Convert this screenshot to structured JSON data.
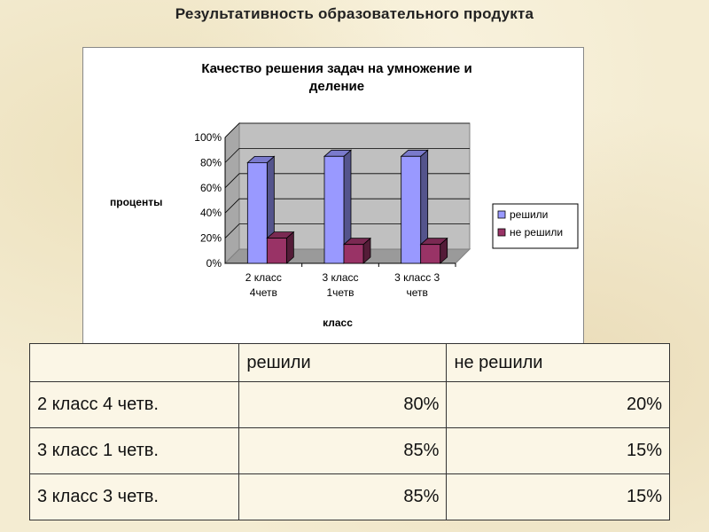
{
  "page_title": "Результативность образовательного продукта",
  "chart_data": {
    "type": "bar",
    "title": "Качество решения задач на умножение и деление",
    "title_lines": [
      "Качество решения задач на умножение и",
      "деление"
    ],
    "categories": [
      [
        "2 класс",
        "4четв"
      ],
      [
        "3 класс",
        "1четв"
      ],
      [
        "3 класс 3",
        "четв"
      ]
    ],
    "series": [
      {
        "name": "решили",
        "values": [
          80,
          85,
          85
        ],
        "color": "#9999ff"
      },
      {
        "name": "не решили",
        "values": [
          20,
          15,
          15
        ],
        "color": "#993366"
      }
    ],
    "ylim": [
      0,
      100
    ],
    "yticks": [
      "0%",
      "20%",
      "40%",
      "60%",
      "80%",
      "100%"
    ],
    "xlabel": "класс",
    "ylabel": "проценты",
    "legend_position": "right",
    "grid": true
  },
  "table": {
    "headers": [
      "",
      "решили",
      "не решили"
    ],
    "rows": [
      [
        "2 класс 4 четв.",
        "80%",
        "20%"
      ],
      [
        "3 класс 1 четв.",
        "85%",
        "15%"
      ],
      [
        "3 класс 3 четв.",
        "85%",
        "15%"
      ]
    ]
  }
}
